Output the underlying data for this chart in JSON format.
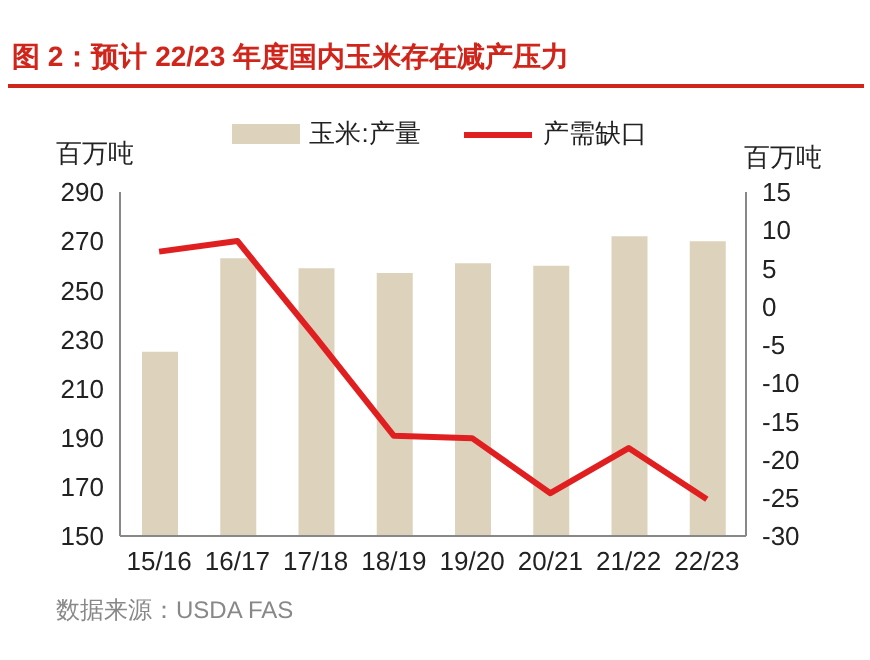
{
  "chart_data": {
    "type": "bar",
    "title": "图 2：预计 22/23 年度国内玉米存在减产压力",
    "ylabel": "百万吨",
    "y2label": "百万吨",
    "categories": [
      "15/16",
      "16/17",
      "17/18",
      "18/19",
      "19/20",
      "20/21",
      "21/22",
      "22/23"
    ],
    "series": [
      {
        "name": "玉米:产量",
        "color": "#ddd3bd",
        "values": [
          225,
          263,
          259,
          257,
          261,
          260,
          272,
          270
        ]
      },
      {
        "name": "产需缺口",
        "type": "line",
        "axis": "y2",
        "color": "#e02020",
        "values": [
          7.2,
          8.6,
          -4,
          -16.9,
          -17.2,
          -24.4,
          -18.5,
          -25.2
        ]
      }
    ],
    "ylim": [
      150,
      290
    ],
    "yticks": [
      150,
      170,
      190,
      210,
      230,
      250,
      270,
      290
    ],
    "y2lim": [
      -30,
      15
    ],
    "y2ticks": [
      -30,
      -25,
      -20,
      -15,
      -10,
      -5,
      0,
      5,
      10,
      15
    ],
    "grid": false,
    "legend": "top",
    "marker": "none",
    "annotations": [
      "数据来源：USDA FAS"
    ]
  }
}
